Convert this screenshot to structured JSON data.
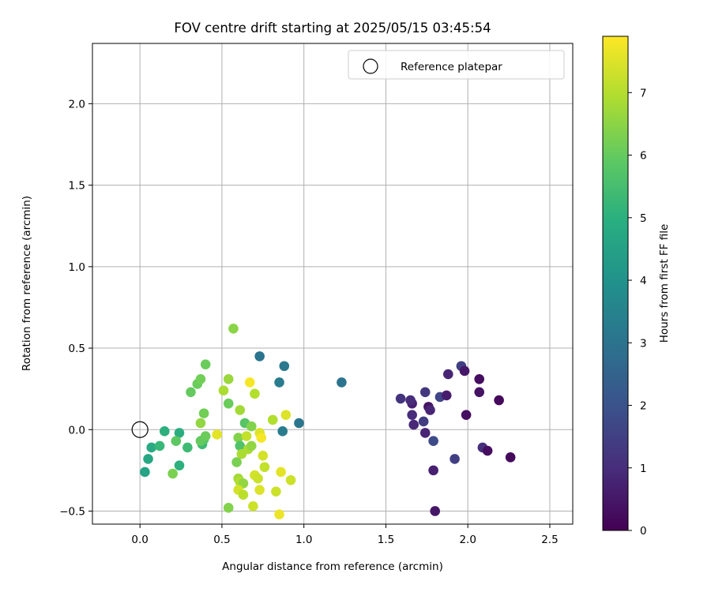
{
  "chart_data": {
    "type": "scatter",
    "title": "FOV centre drift starting at 2025/05/15 03:45:54",
    "xlabel": "Angular distance from reference (arcmin)",
    "ylabel": "Rotation from reference (arcmin)",
    "xlim": [
      -0.29,
      2.64
    ],
    "ylim": [
      -0.58,
      2.37
    ],
    "xticks": [
      0.0,
      0.5,
      1.0,
      1.5,
      2.0,
      2.5
    ],
    "xtick_labels": [
      "0.0",
      "0.5",
      "1.0",
      "1.5",
      "2.0",
      "2.5"
    ],
    "yticks": [
      -0.5,
      0.0,
      0.5,
      1.0,
      1.5,
      2.0
    ],
    "ytick_labels": [
      "−0.5",
      "0.0",
      "0.5",
      "1.0",
      "1.5",
      "2.0"
    ],
    "grid": true,
    "legend": {
      "position": "top-right",
      "entries": [
        "Reference platepar"
      ]
    },
    "reference_point": {
      "x": 0.0,
      "y": 0.0
    },
    "colorbar": {
      "label": "Hours from first FF file",
      "colormap": "viridis",
      "range": [
        0,
        7.9
      ],
      "ticks": [
        0,
        1,
        2,
        3,
        4,
        5,
        6,
        7
      ],
      "tick_labels": [
        "0",
        "1",
        "2",
        "3",
        "4",
        "5",
        "6",
        "7"
      ]
    },
    "points": [
      {
        "x": 1.8,
        "y": -0.5,
        "c": 0.5
      },
      {
        "x": 1.79,
        "y": -0.25,
        "c": 0.7
      },
      {
        "x": 1.92,
        "y": -0.18,
        "c": 1.5
      },
      {
        "x": 1.79,
        "y": -0.07,
        "c": 1.8
      },
      {
        "x": 1.74,
        "y": -0.02,
        "c": 0.8
      },
      {
        "x": 1.67,
        "y": 0.03,
        "c": 0.9
      },
      {
        "x": 1.66,
        "y": 0.09,
        "c": 1.0
      },
      {
        "x": 1.73,
        "y": 0.05,
        "c": 1.4
      },
      {
        "x": 1.76,
        "y": 0.14,
        "c": 0.4
      },
      {
        "x": 1.77,
        "y": 0.12,
        "c": 0.8
      },
      {
        "x": 1.66,
        "y": 0.16,
        "c": 0.7
      },
      {
        "x": 1.65,
        "y": 0.18,
        "c": 1.0
      },
      {
        "x": 1.59,
        "y": 0.19,
        "c": 1.2
      },
      {
        "x": 1.74,
        "y": 0.23,
        "c": 1.3
      },
      {
        "x": 1.83,
        "y": 0.2,
        "c": 1.7
      },
      {
        "x": 1.87,
        "y": 0.21,
        "c": 0.6
      },
      {
        "x": 1.88,
        "y": 0.34,
        "c": 0.8
      },
      {
        "x": 1.96,
        "y": 0.39,
        "c": 1.5
      },
      {
        "x": 1.98,
        "y": 0.36,
        "c": 0.5
      },
      {
        "x": 1.99,
        "y": 0.09,
        "c": 0.3
      },
      {
        "x": 2.07,
        "y": 0.31,
        "c": 0.3
      },
      {
        "x": 2.07,
        "y": 0.23,
        "c": 0.4
      },
      {
        "x": 2.09,
        "y": -0.11,
        "c": 1.1
      },
      {
        "x": 2.12,
        "y": -0.13,
        "c": 0.3
      },
      {
        "x": 2.19,
        "y": 0.18,
        "c": 0.2
      },
      {
        "x": 2.26,
        "y": -0.17,
        "c": 0.2
      },
      {
        "x": 1.23,
        "y": 0.29,
        "c": 3.0
      },
      {
        "x": 0.97,
        "y": 0.04,
        "c": 3.1
      },
      {
        "x": 0.87,
        "y": -0.01,
        "c": 3.3
      },
      {
        "x": 0.88,
        "y": 0.39,
        "c": 3.2
      },
      {
        "x": 0.85,
        "y": 0.29,
        "c": 3.3
      },
      {
        "x": 0.73,
        "y": 0.45,
        "c": 3.0
      },
      {
        "x": 0.03,
        "y": -0.26,
        "c": 4.6
      },
      {
        "x": 0.05,
        "y": -0.18,
        "c": 4.7
      },
      {
        "x": 0.07,
        "y": -0.11,
        "c": 4.8
      },
      {
        "x": 0.12,
        "y": -0.1,
        "c": 5.3
      },
      {
        "x": 0.15,
        "y": -0.01,
        "c": 5.0
      },
      {
        "x": 0.24,
        "y": -0.22,
        "c": 5.0
      },
      {
        "x": 0.24,
        "y": -0.02,
        "c": 4.9
      },
      {
        "x": 0.29,
        "y": -0.11,
        "c": 5.4
      },
      {
        "x": 0.22,
        "y": -0.07,
        "c": 5.9
      },
      {
        "x": 0.2,
        "y": -0.27,
        "c": 6.3
      },
      {
        "x": 0.38,
        "y": -0.09,
        "c": 5.4
      },
      {
        "x": 0.39,
        "y": -0.06,
        "c": 5.7
      },
      {
        "x": 0.37,
        "y": -0.07,
        "c": 6.0
      },
      {
        "x": 0.4,
        "y": -0.04,
        "c": 6.1
      },
      {
        "x": 0.37,
        "y": 0.04,
        "c": 6.6
      },
      {
        "x": 0.39,
        "y": 0.1,
        "c": 6.2
      },
      {
        "x": 0.31,
        "y": 0.23,
        "c": 6.0
      },
      {
        "x": 0.35,
        "y": 0.28,
        "c": 6.1
      },
      {
        "x": 0.37,
        "y": 0.31,
        "c": 6.2
      },
      {
        "x": 0.4,
        "y": 0.4,
        "c": 6.1
      },
      {
        "x": 0.47,
        "y": -0.03,
        "c": 7.6
      },
      {
        "x": 0.51,
        "y": 0.24,
        "c": 6.9
      },
      {
        "x": 0.54,
        "y": 0.31,
        "c": 6.7
      },
      {
        "x": 0.54,
        "y": 0.16,
        "c": 6.1
      },
      {
        "x": 0.57,
        "y": 0.62,
        "c": 6.5
      },
      {
        "x": 0.54,
        "y": -0.48,
        "c": 6.4
      },
      {
        "x": 0.59,
        "y": -0.2,
        "c": 6.3
      },
      {
        "x": 0.6,
        "y": -0.05,
        "c": 6.4
      },
      {
        "x": 0.61,
        "y": -0.1,
        "c": 5.7
      },
      {
        "x": 0.61,
        "y": 0.12,
        "c": 6.8
      },
      {
        "x": 0.64,
        "y": 0.04,
        "c": 5.8
      },
      {
        "x": 0.62,
        "y": -0.15,
        "c": 6.9
      },
      {
        "x": 0.6,
        "y": -0.3,
        "c": 6.8
      },
      {
        "x": 0.61,
        "y": -0.32,
        "c": 7.0
      },
      {
        "x": 0.63,
        "y": -0.33,
        "c": 6.6
      },
      {
        "x": 0.6,
        "y": -0.37,
        "c": 7.4
      },
      {
        "x": 0.63,
        "y": -0.4,
        "c": 7.1
      },
      {
        "x": 0.65,
        "y": -0.04,
        "c": 7.2
      },
      {
        "x": 0.66,
        "y": -0.12,
        "c": 6.9
      },
      {
        "x": 0.67,
        "y": 0.29,
        "c": 7.8
      },
      {
        "x": 0.68,
        "y": 0.02,
        "c": 6.4
      },
      {
        "x": 0.68,
        "y": -0.1,
        "c": 6.6
      },
      {
        "x": 0.69,
        "y": -0.47,
        "c": 7.3
      },
      {
        "x": 0.7,
        "y": -0.28,
        "c": 7.4
      },
      {
        "x": 0.7,
        "y": 0.22,
        "c": 7.0
      },
      {
        "x": 0.72,
        "y": -0.3,
        "c": 7.3
      },
      {
        "x": 0.73,
        "y": -0.02,
        "c": 7.5
      },
      {
        "x": 0.73,
        "y": -0.37,
        "c": 7.5
      },
      {
        "x": 0.74,
        "y": -0.05,
        "c": 7.8
      },
      {
        "x": 0.75,
        "y": -0.16,
        "c": 7.4
      },
      {
        "x": 0.76,
        "y": -0.23,
        "c": 7.2
      },
      {
        "x": 0.81,
        "y": 0.06,
        "c": 7.0
      },
      {
        "x": 0.83,
        "y": -0.38,
        "c": 7.3
      },
      {
        "x": 0.85,
        "y": -0.52,
        "c": 7.7
      },
      {
        "x": 0.86,
        "y": -0.26,
        "c": 7.6
      },
      {
        "x": 0.89,
        "y": 0.09,
        "c": 7.5
      },
      {
        "x": 0.92,
        "y": -0.31,
        "c": 7.3
      }
    ]
  }
}
